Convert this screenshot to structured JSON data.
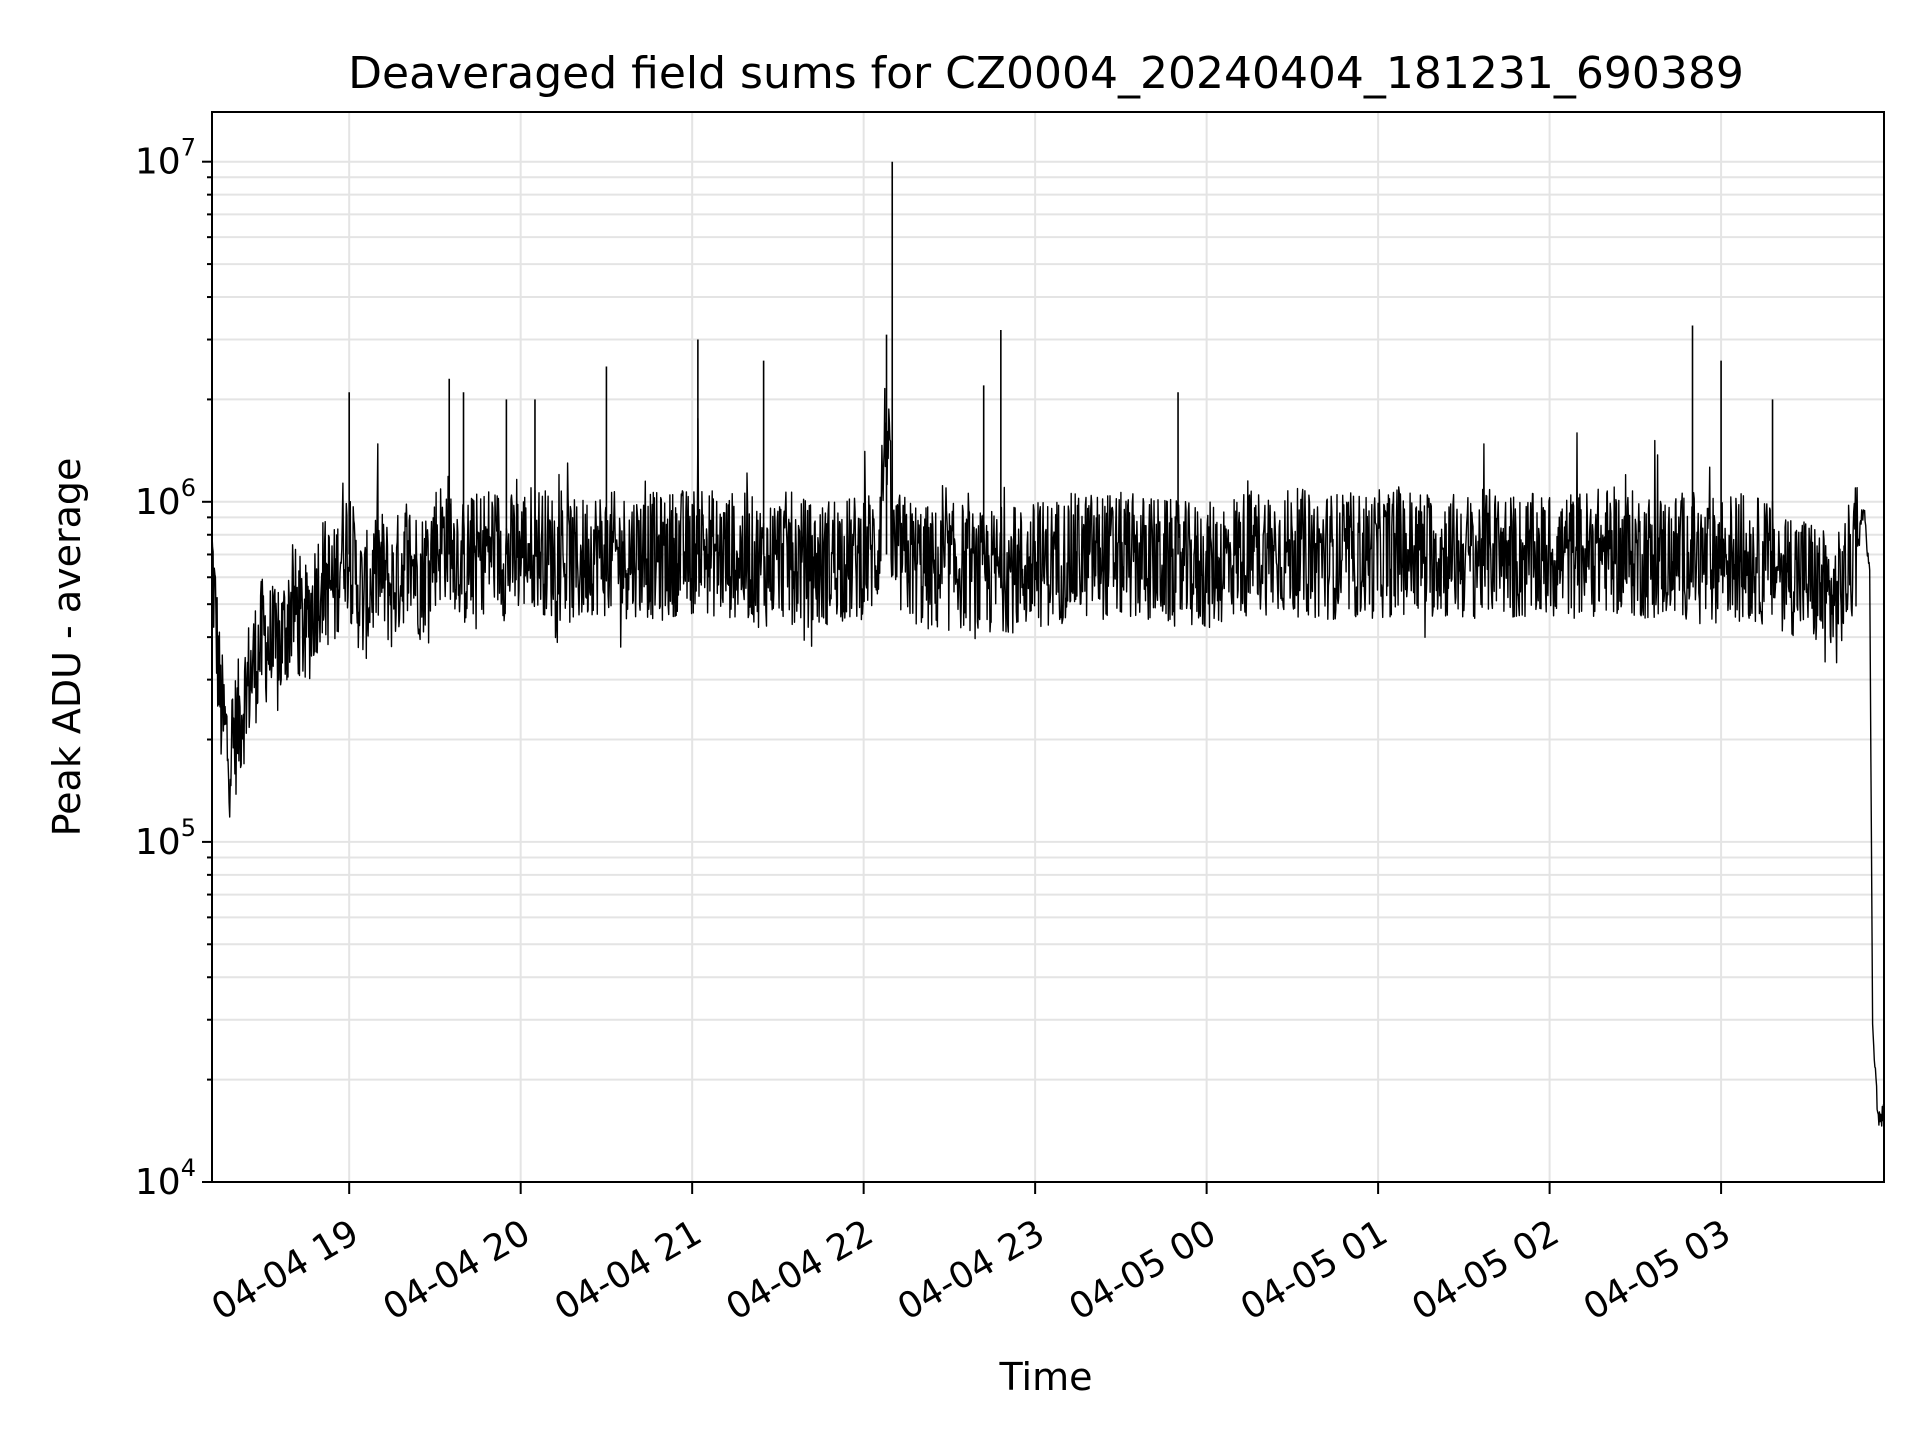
{
  "chart_data": {
    "type": "line",
    "title": "Deaveraged field sums for CZ0004_20240404_181231_690389",
    "xlabel": "Time",
    "ylabel": "Peak ADU - average",
    "yscale": "log",
    "ylim": [
      10000,
      14000000
    ],
    "xlim": [
      "2024-04-04 18:12",
      "2024-04-05 03:57"
    ],
    "grid": true,
    "line_color": "#000000",
    "x_ticks": [
      {
        "value": "2024-04-04 19:00",
        "label": "04-04 19"
      },
      {
        "value": "2024-04-04 20:00",
        "label": "04-04 20"
      },
      {
        "value": "2024-04-04 21:00",
        "label": "04-04 21"
      },
      {
        "value": "2024-04-04 22:00",
        "label": "04-04 22"
      },
      {
        "value": "2024-04-04 23:00",
        "label": "04-04 23"
      },
      {
        "value": "2024-04-05 00:00",
        "label": "04-05 00"
      },
      {
        "value": "2024-04-05 01:00",
        "label": "04-05 01"
      },
      {
        "value": "2024-04-05 02:00",
        "label": "04-05 02"
      },
      {
        "value": "2024-04-05 03:00",
        "label": "04-05 03"
      }
    ],
    "y_ticks": [
      {
        "value": 10000,
        "base": "10",
        "exp": "4"
      },
      {
        "value": 100000,
        "base": "10",
        "exp": "5"
      },
      {
        "value": 1000000,
        "base": "10",
        "exp": "6"
      },
      {
        "value": 10000000,
        "base": "10",
        "exp": "7"
      }
    ],
    "series": [
      {
        "x": [
          "2024-04-04 18:12",
          "2024-04-04 18:15",
          "2024-04-04 18:18",
          "2024-04-04 18:21",
          "2024-04-04 18:25",
          "2024-04-04 18:30",
          "2024-04-04 18:35",
          "2024-04-04 18:40",
          "2024-04-04 18:45",
          "2024-04-04 18:50",
          "2024-04-04 18:55",
          "2024-04-04 18:58",
          "2024-04-04 19:00",
          "2024-04-04 19:05",
          "2024-04-04 19:10",
          "2024-04-04 19:15",
          "2024-04-04 19:20",
          "2024-04-04 19:25",
          "2024-04-04 19:30",
          "2024-04-04 19:35",
          "2024-04-04 19:40",
          "2024-04-04 19:45",
          "2024-04-04 19:50",
          "2024-04-04 19:55",
          "2024-04-04 20:00",
          "2024-04-04 20:05",
          "2024-04-04 20:10",
          "2024-04-04 20:15",
          "2024-04-04 20:20",
          "2024-04-04 20:25",
          "2024-04-04 20:30",
          "2024-04-04 20:35",
          "2024-04-04 20:40",
          "2024-04-04 20:45",
          "2024-04-04 20:50",
          "2024-04-04 20:55",
          "2024-04-04 21:00",
          "2024-04-04 21:02",
          "2024-04-04 21:05",
          "2024-04-04 21:10",
          "2024-04-04 21:15",
          "2024-04-04 21:20",
          "2024-04-04 21:25",
          "2024-04-04 21:30",
          "2024-04-04 21:35",
          "2024-04-04 21:40",
          "2024-04-04 21:45",
          "2024-04-04 21:50",
          "2024-04-04 21:55",
          "2024-04-04 22:00",
          "2024-04-04 22:05",
          "2024-04-04 22:08",
          "2024-04-04 22:10",
          "2024-04-04 22:15",
          "2024-04-04 22:20",
          "2024-04-04 22:25",
          "2024-04-04 22:30",
          "2024-04-04 22:35",
          "2024-04-04 22:40",
          "2024-04-04 22:45",
          "2024-04-04 22:50",
          "2024-04-04 22:55",
          "2024-04-04 23:00",
          "2024-04-04 23:10",
          "2024-04-04 23:20",
          "2024-04-04 23:30",
          "2024-04-04 23:40",
          "2024-04-04 23:50",
          "2024-04-05 00:00",
          "2024-04-05 00:10",
          "2024-04-05 00:20",
          "2024-04-05 00:30",
          "2024-04-05 00:40",
          "2024-04-05 00:50",
          "2024-04-05 01:00",
          "2024-04-05 01:10",
          "2024-04-05 01:20",
          "2024-04-05 01:30",
          "2024-04-05 01:40",
          "2024-04-05 01:50",
          "2024-04-05 02:00",
          "2024-04-05 02:10",
          "2024-04-05 02:20",
          "2024-04-05 02:30",
          "2024-04-05 02:40",
          "2024-04-05 02:50",
          "2024-04-05 02:55",
          "2024-04-05 03:00",
          "2024-04-05 03:10",
          "2024-04-05 03:20",
          "2024-04-05 03:30",
          "2024-04-05 03:35",
          "2024-04-05 03:40",
          "2024-04-05 03:45",
          "2024-04-05 03:48",
          "2024-04-05 03:50",
          "2024-04-05 03:52",
          "2024-04-05 03:53",
          "2024-04-05 03:55",
          "2024-04-05 03:57"
        ],
        "y": [
          700000,
          250000,
          180000,
          220000,
          300000,
          400000,
          350000,
          500000,
          420000,
          600000,
          550000,
          800000,
          700000,
          500000,
          650000,
          550000,
          700000,
          600000,
          750000,
          800000,
          650000,
          700000,
          750000,
          680000,
          720000,
          750000,
          700000,
          680000,
          650000,
          720000,
          700000,
          690000,
          710000,
          700000,
          680000,
          720000,
          700000,
          800000,
          720000,
          690000,
          700000,
          680000,
          650000,
          700000,
          690000,
          660000,
          640000,
          700000,
          670000,
          700000,
          720000,
          1800000,
          700000,
          680000,
          650000,
          620000,
          640000,
          650000,
          600000,
          620000,
          640000,
          630000,
          650000,
          680000,
          700000,
          690000,
          680000,
          650000,
          640000,
          700000,
          720000,
          710000,
          700000,
          690000,
          700000,
          720000,
          700000,
          690000,
          710000,
          680000,
          690000,
          700000,
          720000,
          700000,
          690000,
          700000,
          650000,
          700000,
          680000,
          650000,
          600000,
          550000,
          500000,
          650000,
          750000,
          1000000,
          600000,
          30000,
          15000,
          16000
        ]
      }
    ],
    "spikes": [
      {
        "x": "2024-04-04 19:00",
        "y": 2100000
      },
      {
        "x": "2024-04-04 19:35",
        "y": 2300000
      },
      {
        "x": "2024-04-04 19:40",
        "y": 2100000
      },
      {
        "x": "2024-04-04 19:55",
        "y": 2000000
      },
      {
        "x": "2024-04-04 20:05",
        "y": 2000000
      },
      {
        "x": "2024-04-04 20:30",
        "y": 2500000
      },
      {
        "x": "2024-04-04 21:02",
        "y": 3000000
      },
      {
        "x": "2024-04-04 21:25",
        "y": 2600000
      },
      {
        "x": "2024-04-04 22:08",
        "y": 3100000
      },
      {
        "x": "2024-04-04 22:10",
        "y": 10000000
      },
      {
        "x": "2024-04-04 22:42",
        "y": 2200000
      },
      {
        "x": "2024-04-04 22:48",
        "y": 3200000
      },
      {
        "x": "2024-04-04 23:50",
        "y": 2100000
      },
      {
        "x": "2024-04-05 02:50",
        "y": 3300000
      },
      {
        "x": "2024-04-05 03:00",
        "y": 2600000
      },
      {
        "x": "2024-04-05 03:18",
        "y": 2000000
      }
    ]
  }
}
